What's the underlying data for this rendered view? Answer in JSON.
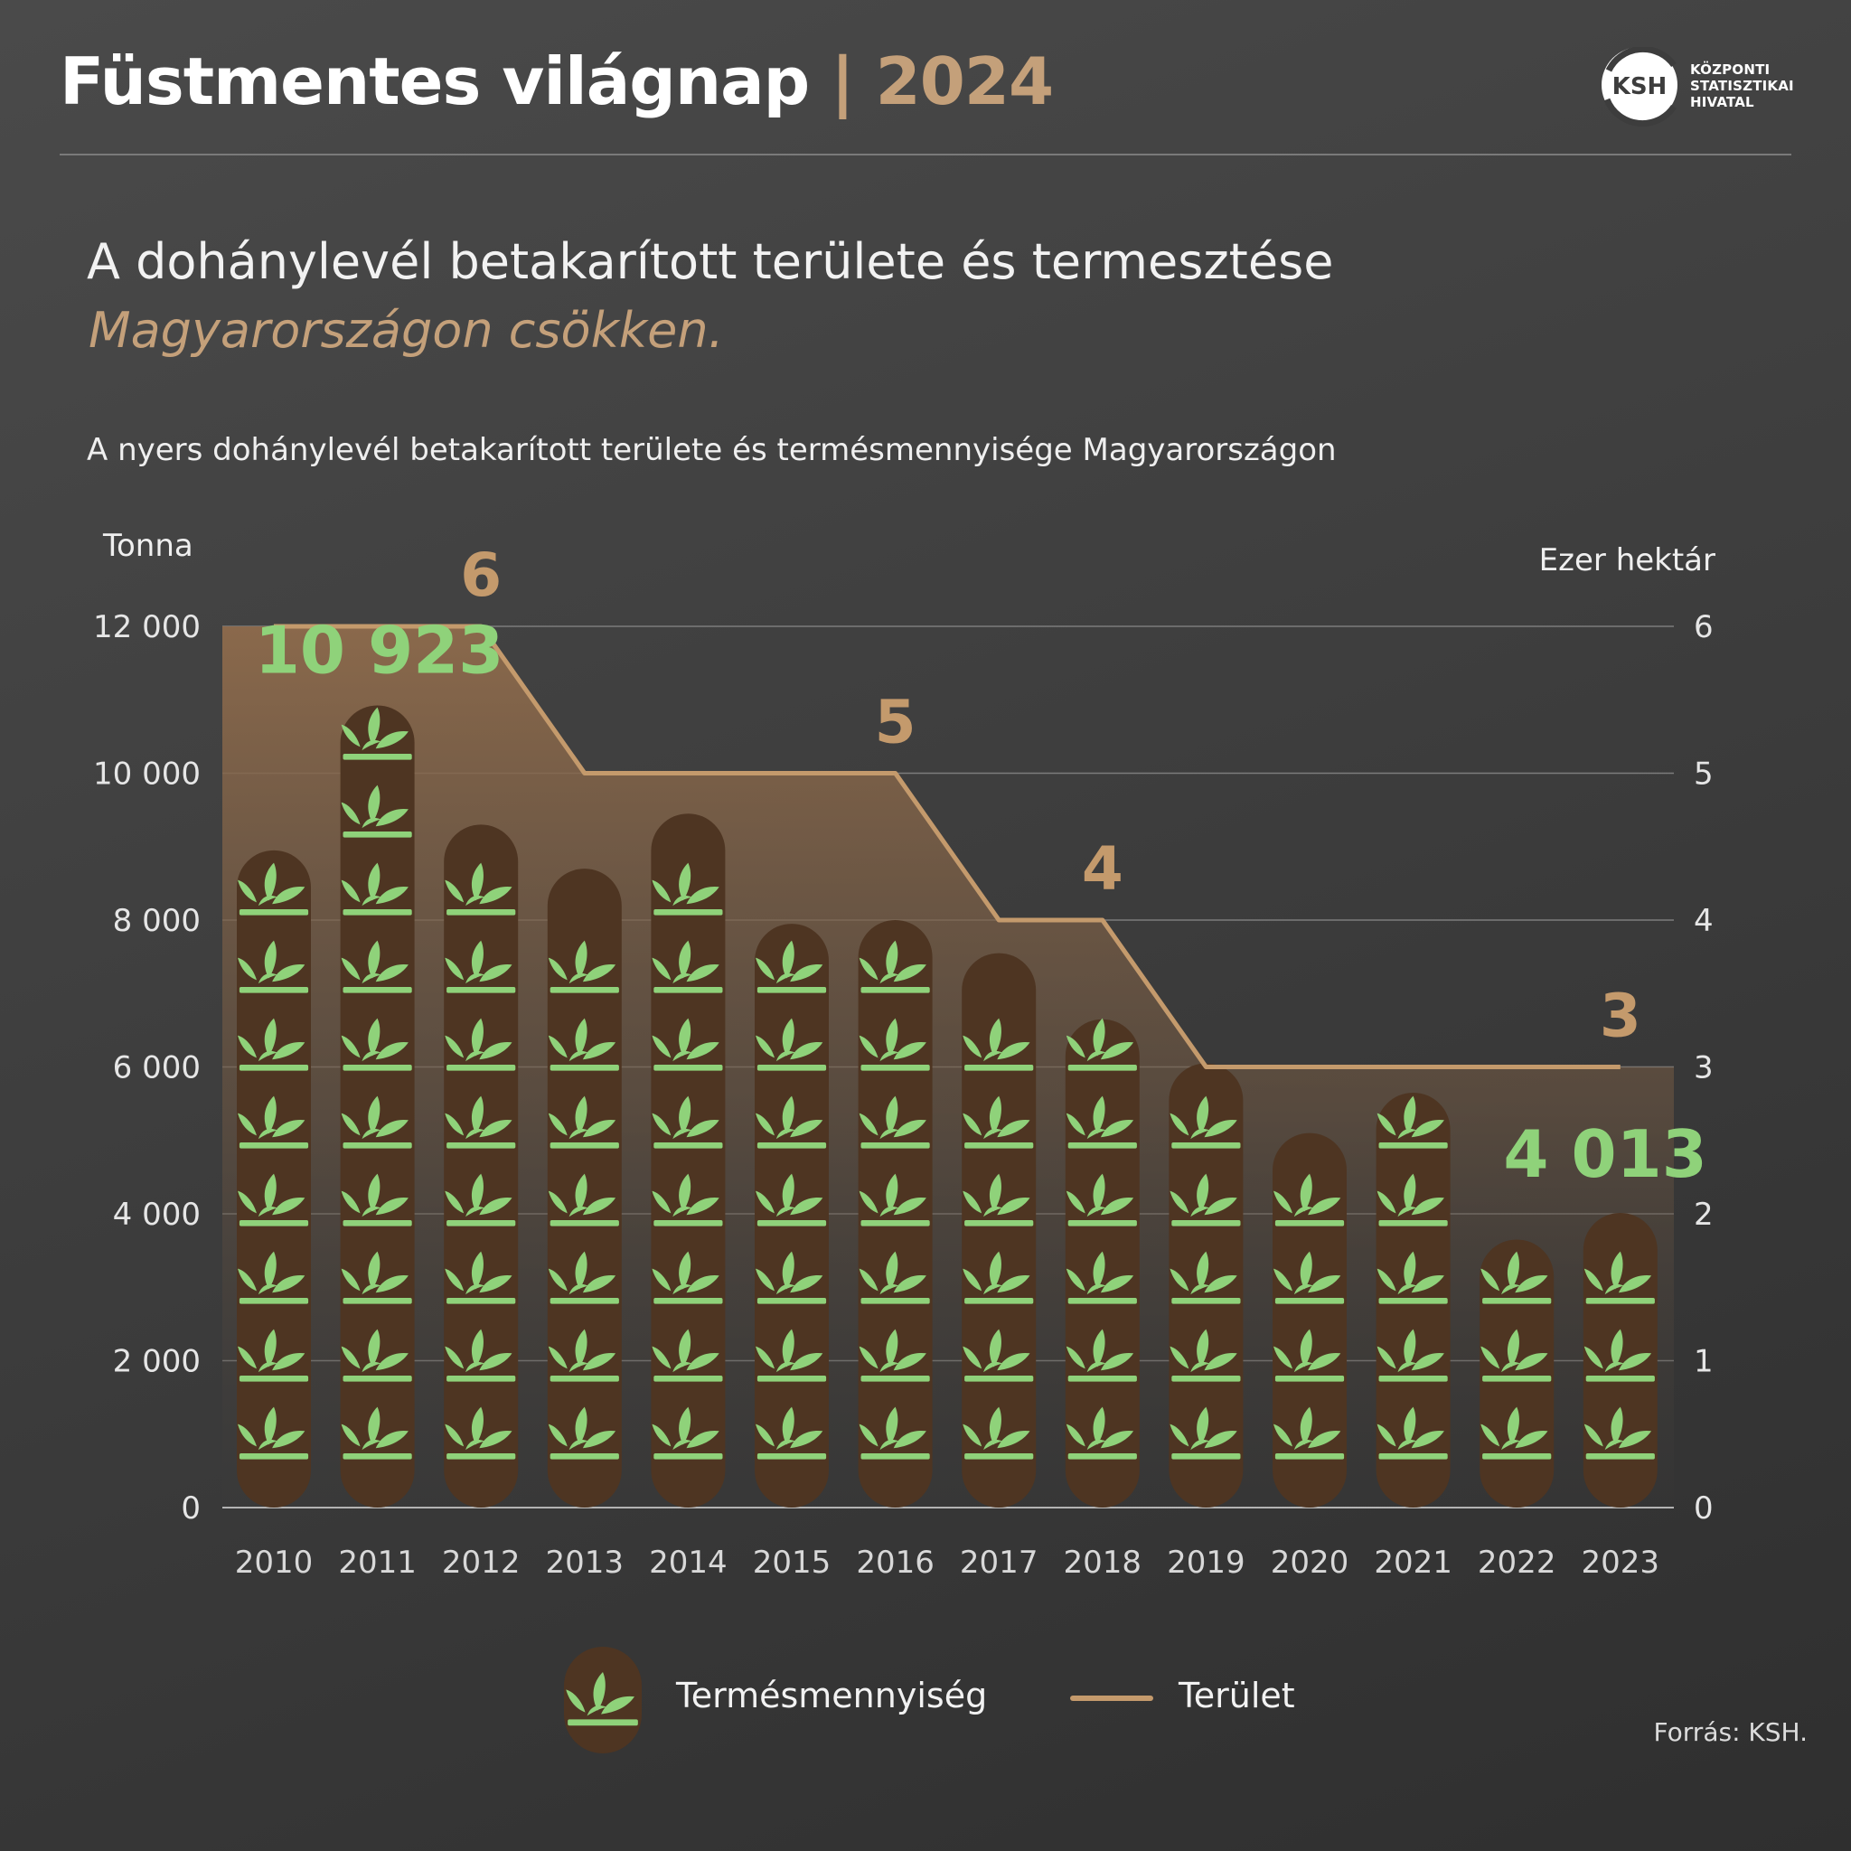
{
  "header": {
    "title": "Füstmentes világnap",
    "separator": "|",
    "year": "2024",
    "logo_abbr": "KSH",
    "logo_lines": [
      "KÖZPONTI",
      "STATISZTIKAI",
      "HIVATAL"
    ]
  },
  "headline": {
    "line1": "A dohánylevél betakarított területe és termesztése",
    "line2": "Magyarországon csökken."
  },
  "source": "Forrás: KSH.",
  "colors": {
    "area_line": "#c49a6c",
    "bar": "#4e3522",
    "leaf": "#8fd27a",
    "production_label": "#8fd27a"
  },
  "legend": {
    "production": "Termésmennyiség",
    "area": "Terület",
    "production_icon": "tobacco-plant-icon"
  },
  "chart_data": {
    "type": "bar",
    "title": "A nyers dohánylevél betakarított területe és termésmennyisége Magyarországon",
    "categories": [
      "2010",
      "2011",
      "2012",
      "2013",
      "2014",
      "2015",
      "2016",
      "2017",
      "2018",
      "2019",
      "2020",
      "2021",
      "2022",
      "2023"
    ],
    "y_left": {
      "label": "Tonna",
      "range": [
        0,
        12000
      ],
      "ticks": [
        "0",
        "2 000",
        "4 000",
        "6 000",
        "8 000",
        "10 000",
        "12 000"
      ]
    },
    "y_right": {
      "label": "Ezer hektár",
      "range": [
        0,
        6
      ],
      "ticks": [
        "0",
        "1",
        "2",
        "3",
        "4",
        "5",
        "6"
      ]
    },
    "grid": true,
    "series": [
      {
        "name": "Termésmennyiség",
        "axis": "left",
        "type": "bar",
        "values": [
          8950,
          10923,
          9300,
          8700,
          9450,
          7950,
          8000,
          7550,
          6650,
          6050,
          5100,
          5650,
          3650,
          4013
        ]
      },
      {
        "name": "Terület",
        "axis": "right",
        "type": "area-line",
        "values": [
          6,
          6,
          6,
          5,
          5,
          5,
          5,
          4,
          4,
          3,
          3,
          3,
          3,
          3
        ]
      }
    ],
    "annotations": [
      {
        "series": "Terület",
        "category": "2012",
        "text": "6"
      },
      {
        "series": "Terület",
        "category": "2016",
        "text": "5"
      },
      {
        "series": "Terület",
        "category": "2018",
        "text": "4"
      },
      {
        "series": "Terület",
        "category": "2023",
        "text": "3"
      },
      {
        "series": "Termésmennyiség",
        "category": "2011",
        "text": "10 923"
      },
      {
        "series": "Termésmennyiség",
        "category": "2023",
        "text": "4 013"
      }
    ]
  }
}
